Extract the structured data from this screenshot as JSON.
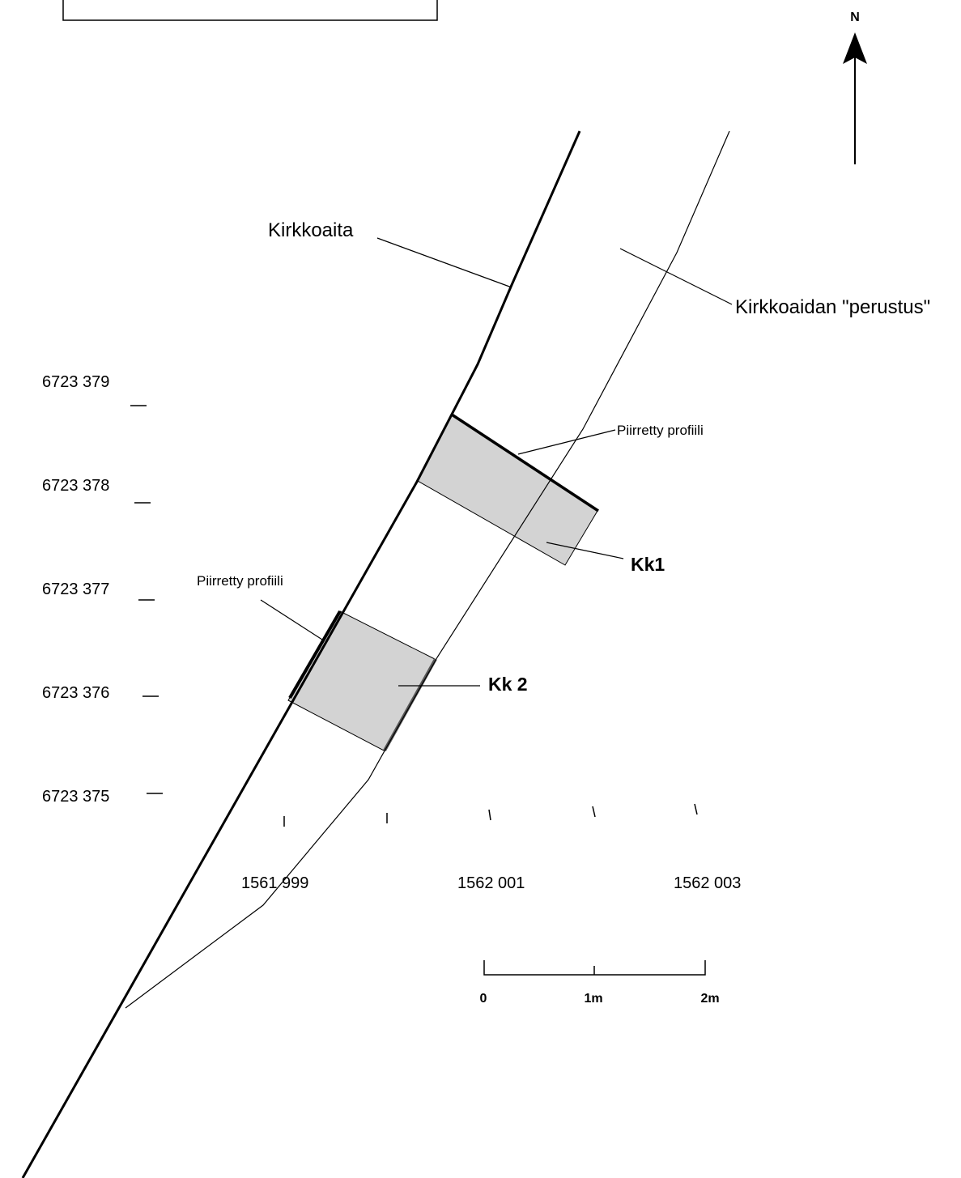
{
  "map": {
    "north_label": "N",
    "features": {
      "fence_label": "Kirkkoaita",
      "foundation_label": "Kirkkoaidan \"perustus\""
    },
    "profile_labels": {
      "upper": "Piirretty profiili",
      "lower": "Piirretty profiili"
    },
    "trenches": {
      "kk1": "Kk1",
      "kk2": "Kk 2"
    },
    "y_coordinates": [
      "6723 379",
      "6723 378",
      "6723 377",
      "6723 376",
      "6723 375"
    ],
    "x_coordinates": [
      "1561 999",
      "1562 001",
      "1562 003"
    ],
    "scale_bar": {
      "labels": [
        "0",
        "1m",
        "2m"
      ]
    },
    "colors": {
      "trench_fill": "#d3d3d3",
      "line": "#000000",
      "background": "#ffffff"
    }
  }
}
